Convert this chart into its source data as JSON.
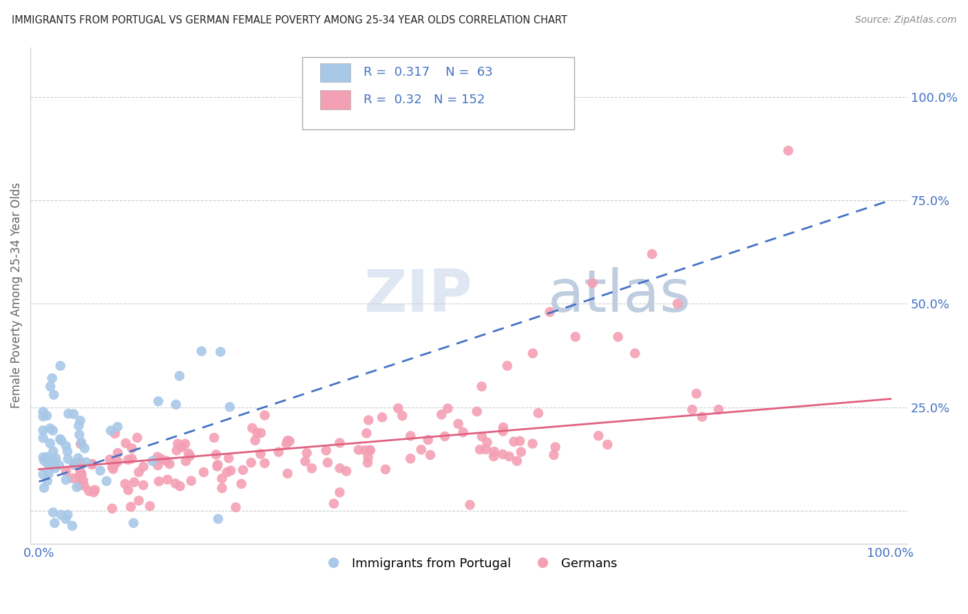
{
  "title": "IMMIGRANTS FROM PORTUGAL VS GERMAN FEMALE POVERTY AMONG 25-34 YEAR OLDS CORRELATION CHART",
  "source": "Source: ZipAtlas.com",
  "ylabel": "Female Poverty Among 25-34 Year Olds",
  "xlim": [
    -0.01,
    1.02
  ],
  "ylim": [
    -0.08,
    1.12
  ],
  "yticks": [
    0.0,
    0.25,
    0.5,
    0.75,
    1.0
  ],
  "ytick_labels": [
    "",
    "25.0%",
    "50.0%",
    "75.0%",
    "100.0%"
  ],
  "xticks": [
    0.0,
    1.0
  ],
  "xtick_labels": [
    "0.0%",
    "100.0%"
  ],
  "blue_R": 0.317,
  "blue_N": 63,
  "pink_R": 0.32,
  "pink_N": 152,
  "blue_color": "#a8c8e8",
  "blue_line_color": "#4472c4",
  "pink_color": "#f4a0b4",
  "pink_line_color": "#e06080",
  "legend_blue_label": "Immigrants from Portugal",
  "legend_pink_label": "Germans",
  "watermark_zip": "ZIP",
  "watermark_atlas": "atlas",
  "background_color": "#ffffff"
}
